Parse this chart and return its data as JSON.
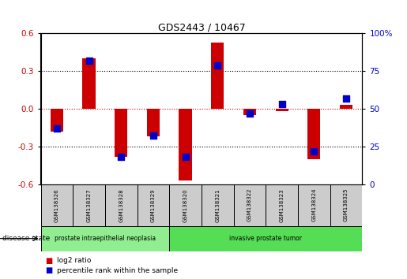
{
  "title": "GDS2443 / 10467",
  "samples": [
    "GSM138326",
    "GSM138327",
    "GSM138328",
    "GSM138329",
    "GSM138320",
    "GSM138321",
    "GSM138322",
    "GSM138323",
    "GSM138324",
    "GSM138325"
  ],
  "log2_ratio": [
    -0.18,
    0.4,
    -0.38,
    -0.22,
    -0.57,
    0.53,
    -0.05,
    -0.02,
    -0.4,
    0.03
  ],
  "percentile": [
    37,
    82,
    18,
    32,
    18,
    79,
    47,
    53,
    22,
    57
  ],
  "ylim": [
    -0.6,
    0.6
  ],
  "yticks_left": [
    -0.6,
    -0.3,
    0.0,
    0.3,
    0.6
  ],
  "yticks_right": [
    0,
    25,
    50,
    75,
    100
  ],
  "bar_color_red": "#cc0000",
  "bar_color_blue": "#0000cc",
  "zero_line_color": "#cc0000",
  "disease_groups": [
    {
      "label": "prostate intraepithelial neoplasia",
      "start": 0,
      "end": 4,
      "color": "#90ee90"
    },
    {
      "label": "invasive prostate tumor",
      "start": 4,
      "end": 10,
      "color": "#55dd55"
    }
  ],
  "legend_items": [
    {
      "label": "log2 ratio",
      "color": "#cc0000"
    },
    {
      "label": "percentile rank within the sample",
      "color": "#0000cc"
    }
  ],
  "disease_state_label": "disease state",
  "bar_width": 0.4,
  "blue_marker_size": 40
}
